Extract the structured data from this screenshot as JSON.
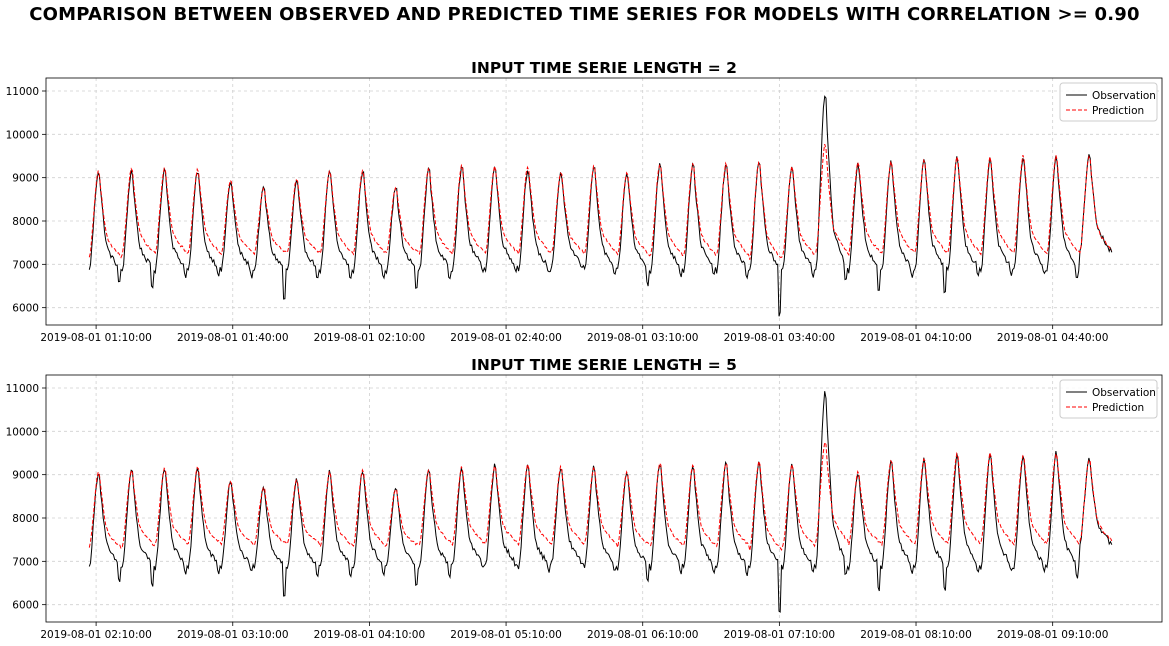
{
  "suptitle": "COMPARISON BETWEEN OBSERVED AND PREDICTED TIME SERIES FOR MODELS WITH CORRELATION >= 0.90",
  "colors": {
    "observation": "#000000",
    "prediction": "#ff0000",
    "grid": "#d0d0d0"
  },
  "chart_data": [
    {
      "type": "line",
      "title": "INPUT TIME SERIE LENGTH = 2",
      "xlabel": "",
      "ylabel": "",
      "x_start": "2019-08-01 01:10:00",
      "x_tick_labels": [
        "2019-08-01 01:10:00",
        "2019-08-01 01:40:00",
        "2019-08-01 02:10:00",
        "2019-08-01 02:40:00",
        "2019-08-01 03:10:00",
        "2019-08-01 03:40:00",
        "2019-08-01 04:10:00",
        "2019-08-01 04:40:00"
      ],
      "x_range_minutes": [
        -11,
        234
      ],
      "ylim": [
        5600,
        11300
      ],
      "y_ticks": [
        6000,
        7000,
        8000,
        9000,
        10000,
        11000
      ],
      "grid": true,
      "legend": {
        "placement": "top-right",
        "entries": [
          "Observation",
          "Prediction"
        ]
      },
      "cycle_minutes": 7.25,
      "cycles_count": 31,
      "series": [
        {
          "name": "Observation",
          "peaks": [
            9200,
            9200,
            9250,
            9200,
            8950,
            8800,
            8950,
            9200,
            9200,
            8800,
            9250,
            9300,
            9300,
            9250,
            9150,
            9300,
            9150,
            9350,
            9350,
            9350,
            9400,
            9300,
            11000,
            9350,
            9400,
            9450,
            9500,
            9500,
            9550,
            9550,
            9550
          ],
          "troughs": [
            6600,
            6500,
            6800,
            6800,
            6800,
            6200,
            6700,
            6700,
            6750,
            6450,
            6700,
            6900,
            6900,
            6850,
            6950,
            6800,
            6600,
            6800,
            6800,
            6750,
            5800,
            6800,
            6650,
            6400,
            6800,
            6350,
            6800,
            6850,
            6850,
            6700,
            7300
          ]
        },
        {
          "name": "Prediction",
          "peaks": [
            9200,
            9250,
            9250,
            9250,
            9000,
            8800,
            9000,
            9200,
            9200,
            8800,
            9250,
            9300,
            9300,
            9300,
            9150,
            9300,
            9150,
            9350,
            9350,
            9350,
            9400,
            9300,
            9800,
            9400,
            9400,
            9450,
            9500,
            9500,
            9550,
            9550,
            9550
          ],
          "troughs": [
            7150,
            7250,
            7250,
            7250,
            7250,
            7250,
            7250,
            7250,
            7250,
            7250,
            7250,
            7250,
            7250,
            7250,
            7250,
            7250,
            7200,
            7200,
            7200,
            7200,
            7100,
            7200,
            7250,
            7250,
            7250,
            7250,
            7250,
            7250,
            7250,
            7250,
            7300
          ]
        }
      ]
    },
    {
      "type": "line",
      "title": "INPUT TIME SERIE LENGTH = 5",
      "xlabel": "",
      "ylabel": "",
      "x_start": "2019-08-01 02:10:00",
      "x_tick_labels": [
        "2019-08-01 02:10:00",
        "2019-08-01 03:10:00",
        "2019-08-01 04:10:00",
        "2019-08-01 05:10:00",
        "2019-08-01 06:10:00",
        "2019-08-01 07:10:00",
        "2019-08-01 08:10:00",
        "2019-08-01 09:10:00"
      ],
      "x_range_minutes": [
        -22,
        468
      ],
      "ylim": [
        5600,
        11300
      ],
      "y_ticks": [
        6000,
        7000,
        8000,
        9000,
        10000,
        11000
      ],
      "grid": true,
      "legend": {
        "placement": "top-right",
        "entries": [
          "Observation",
          "Prediction"
        ]
      },
      "cycle_minutes": 14.5,
      "cycles_count": 31,
      "series": [
        {
          "name": "Observation",
          "peaks": [
            9100,
            9150,
            9200,
            9200,
            8900,
            8750,
            8900,
            9100,
            9150,
            8750,
            9150,
            9200,
            9250,
            9250,
            9200,
            9200,
            9100,
            9300,
            9250,
            9300,
            9350,
            9250,
            11000,
            9100,
            9350,
            9400,
            9500,
            9550,
            9500,
            9550,
            9400
          ],
          "troughs": [
            6600,
            6500,
            6800,
            6800,
            6800,
            6200,
            6700,
            6700,
            6750,
            6450,
            6700,
            6900,
            6900,
            6850,
            6950,
            6800,
            6600,
            6800,
            6800,
            6750,
            5850,
            6800,
            6700,
            6400,
            6800,
            6400,
            6800,
            6850,
            6850,
            6700,
            7400
          ]
        },
        {
          "name": "Prediction",
          "peaks": [
            9100,
            9150,
            9200,
            9200,
            8900,
            8750,
            8900,
            9100,
            9150,
            8700,
            9150,
            9200,
            9250,
            9250,
            9200,
            9200,
            9100,
            9300,
            9250,
            9300,
            9350,
            9250,
            9800,
            9100,
            9350,
            9400,
            9500,
            9550,
            9500,
            9550,
            9400
          ],
          "troughs": [
            7300,
            7350,
            7400,
            7400,
            7400,
            7400,
            7400,
            7350,
            7350,
            7350,
            7400,
            7400,
            7400,
            7400,
            7400,
            7400,
            7350,
            7350,
            7350,
            7350,
            7250,
            7350,
            7450,
            7400,
            7400,
            7400,
            7400,
            7400,
            7400,
            7400,
            7450
          ]
        }
      ]
    }
  ]
}
